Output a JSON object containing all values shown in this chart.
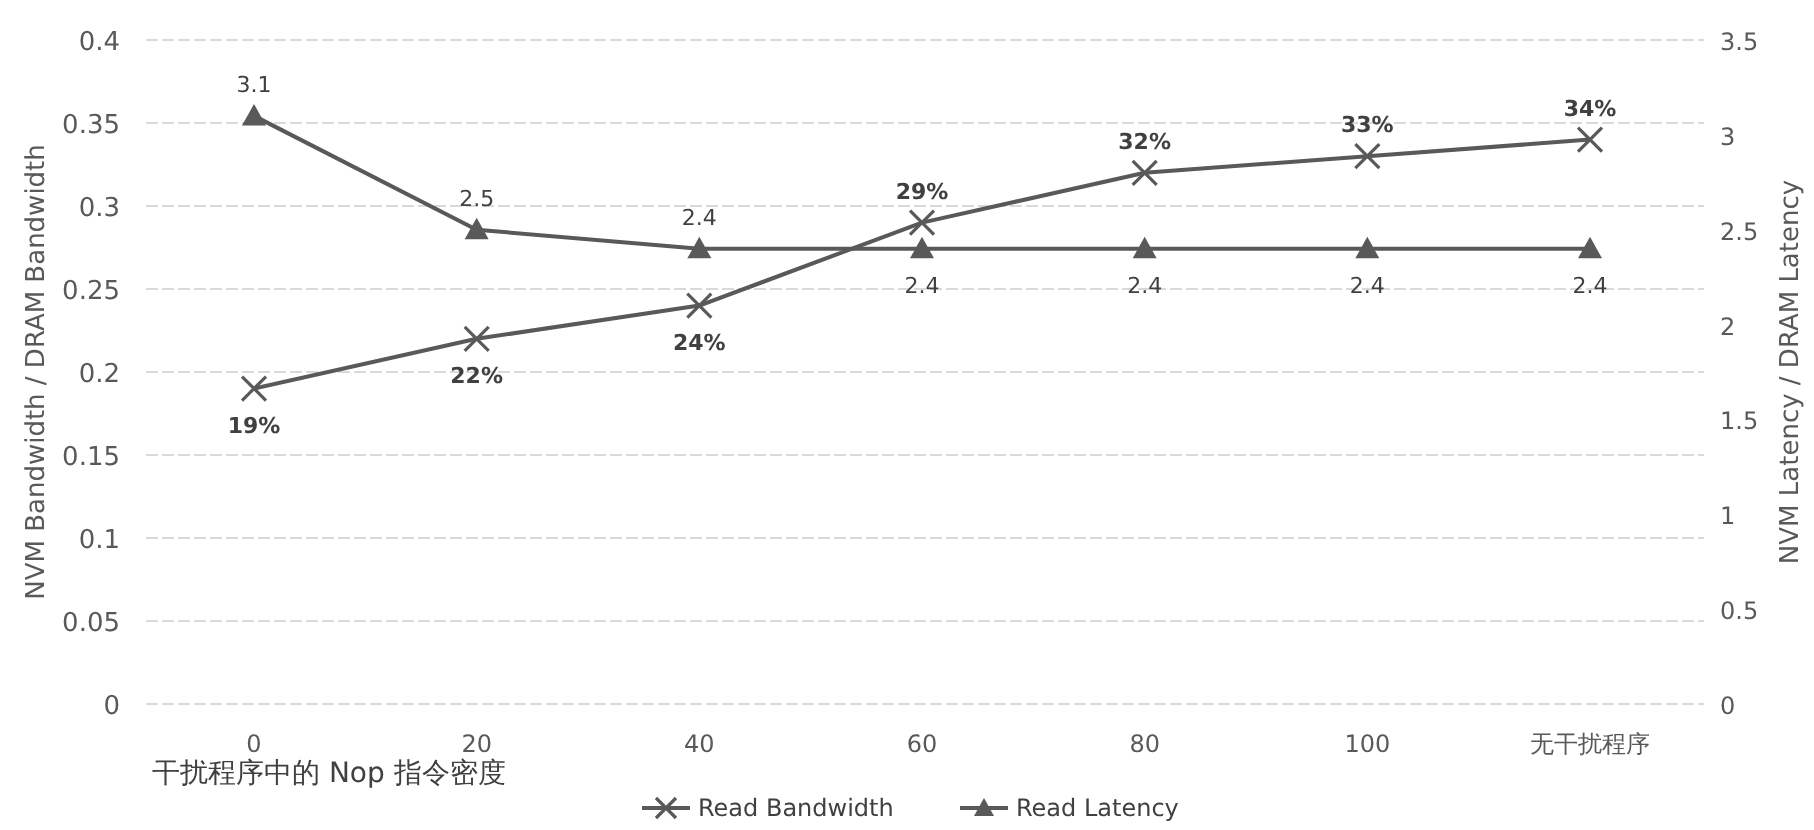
{
  "chart_data": {
    "type": "line",
    "xlabel": "干扰程序中的 Nop 指令密度",
    "ylabel": "NVM Bandwidth / DRAM Bandwidth",
    "y2label": "NVM Latency / DRAM Latency",
    "categories": [
      "0",
      "20",
      "40",
      "60",
      "80",
      "100",
      "无干扰程序"
    ],
    "series": [
      {
        "name": "Read Bandwidth",
        "color": "#595959",
        "marker": "cross",
        "values": [
          0.19,
          0.22,
          0.24,
          0.29,
          0.32,
          0.33,
          0.34
        ],
        "value_labels": [
          "19%",
          "22%",
          "24%",
          "29%",
          "32%",
          "33%",
          "34%"
        ]
      },
      {
        "name": "Read Latency",
        "color": "#595959",
        "marker": "triangle",
        "axis": "y2",
        "values": [
          3.1,
          2.5,
          2.4,
          2.4,
          2.4,
          2.4,
          2.4
        ],
        "value_labels": [
          "3.1",
          "2.5",
          "2.4",
          "2.4",
          "2.4",
          "2.4",
          "2.4"
        ]
      }
    ],
    "ylim": [
      0,
      0.4
    ],
    "yticks": [
      0,
      0.05,
      0.1,
      0.15,
      0.2,
      0.25,
      0.3,
      0.35,
      0.4
    ],
    "y2lim": [
      0,
      3.5
    ],
    "y2ticks": [
      0,
      0.5,
      1,
      1.5,
      2,
      2.5,
      3,
      3.5
    ],
    "grid": "y",
    "legend": "bottom"
  }
}
